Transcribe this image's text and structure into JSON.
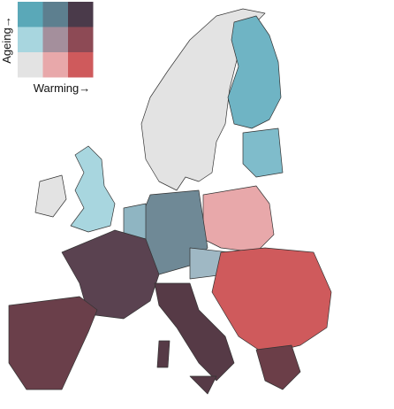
{
  "legend": {
    "y_label": "Ageing→",
    "x_label": "Warming→",
    "colors": [
      [
        "#5aa8b8",
        "#5d7f8f",
        "#4a3a4a"
      ],
      [
        "#a8d6df",
        "#a48f9c",
        "#8d4a55"
      ],
      [
        "#e3e3e3",
        "#e8a8aa",
        "#cf5a5c"
      ]
    ]
  }
}
